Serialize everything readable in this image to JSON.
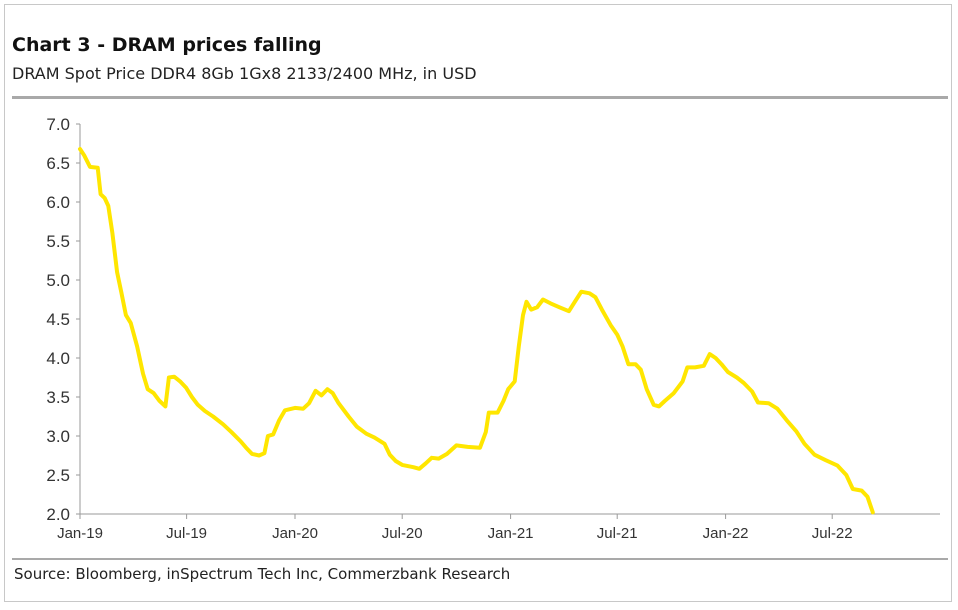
{
  "title": "Chart 3 - DRAM prices falling",
  "subtitle": "DRAM Spot Price DDR4 8Gb 1Gx8 2133/2400 MHz, in USD",
  "source": "Source: Bloomberg, inSpectrum Tech Inc, Commerzbank Research",
  "chart_data": {
    "type": "line",
    "title": "Chart 3 - DRAM prices falling",
    "subtitle": "DRAM Spot Price DDR4 8Gb 1Gx8 2133/2400 MHz, in USD",
    "xlabel": "",
    "ylabel": "",
    "ylim": [
      2.0,
      7.0
    ],
    "xlim": [
      "2019-01-01",
      "2022-12-31"
    ],
    "grid": false,
    "legend": "none",
    "line_color": "#ffe600",
    "y_ticks": [
      "2.0",
      "2.5",
      "3.0",
      "3.5",
      "4.0",
      "4.5",
      "5.0",
      "5.5",
      "6.0",
      "6.5",
      "7.0"
    ],
    "x_ticks": [
      {
        "label": "Jan-19",
        "date": "2019-01-01"
      },
      {
        "label": "Jul-19",
        "date": "2019-07-01"
      },
      {
        "label": "Jan-20",
        "date": "2020-01-01"
      },
      {
        "label": "Jul-20",
        "date": "2020-07-01"
      },
      {
        "label": "Jan-21",
        "date": "2021-01-01"
      },
      {
        "label": "Jul-21",
        "date": "2021-07-01"
      },
      {
        "label": "Jan-22",
        "date": "2022-01-01"
      },
      {
        "label": "Jul-22",
        "date": "2022-07-01"
      }
    ],
    "series": [
      {
        "points": [
          [
            "2019-01-01",
            6.68
          ],
          [
            "2019-01-08",
            6.6
          ],
          [
            "2019-01-18",
            6.45
          ],
          [
            "2019-01-31",
            6.44
          ],
          [
            "2019-02-05",
            6.1
          ],
          [
            "2019-02-12",
            6.05
          ],
          [
            "2019-02-18",
            5.95
          ],
          [
            "2019-02-25",
            5.6
          ],
          [
            "2019-03-05",
            5.1
          ],
          [
            "2019-03-12",
            4.85
          ],
          [
            "2019-03-20",
            4.55
          ],
          [
            "2019-03-28",
            4.45
          ],
          [
            "2019-04-08",
            4.15
          ],
          [
            "2019-04-18",
            3.8
          ],
          [
            "2019-04-26",
            3.6
          ],
          [
            "2019-05-06",
            3.55
          ],
          [
            "2019-05-16",
            3.45
          ],
          [
            "2019-05-26",
            3.38
          ],
          [
            "2019-06-01",
            3.75
          ],
          [
            "2019-06-10",
            3.76
          ],
          [
            "2019-06-20",
            3.7
          ],
          [
            "2019-06-30",
            3.62
          ],
          [
            "2019-07-10",
            3.5
          ],
          [
            "2019-07-20",
            3.4
          ],
          [
            "2019-08-01",
            3.32
          ],
          [
            "2019-08-15",
            3.25
          ],
          [
            "2019-09-01",
            3.15
          ],
          [
            "2019-09-15",
            3.05
          ],
          [
            "2019-10-01",
            2.93
          ],
          [
            "2019-10-10",
            2.85
          ],
          [
            "2019-10-20",
            2.77
          ],
          [
            "2019-11-01",
            2.75
          ],
          [
            "2019-11-10",
            2.78
          ],
          [
            "2019-11-16",
            3.0
          ],
          [
            "2019-11-25",
            3.02
          ],
          [
            "2019-12-05",
            3.2
          ],
          [
            "2019-12-15",
            3.33
          ],
          [
            "2020-01-01",
            3.36
          ],
          [
            "2020-01-15",
            3.35
          ],
          [
            "2020-01-25",
            3.42
          ],
          [
            "2020-02-05",
            3.58
          ],
          [
            "2020-02-15",
            3.52
          ],
          [
            "2020-02-25",
            3.6
          ],
          [
            "2020-03-05",
            3.55
          ],
          [
            "2020-03-15",
            3.42
          ],
          [
            "2020-04-01",
            3.25
          ],
          [
            "2020-04-15",
            3.12
          ],
          [
            "2020-05-01",
            3.03
          ],
          [
            "2020-05-15",
            2.98
          ],
          [
            "2020-06-01",
            2.9
          ],
          [
            "2020-06-10",
            2.76
          ],
          [
            "2020-06-20",
            2.68
          ],
          [
            "2020-07-01",
            2.63
          ],
          [
            "2020-07-20",
            2.6
          ],
          [
            "2020-07-30",
            2.58
          ],
          [
            "2020-08-10",
            2.65
          ],
          [
            "2020-08-20",
            2.72
          ],
          [
            "2020-09-01",
            2.71
          ],
          [
            "2020-09-15",
            2.77
          ],
          [
            "2020-10-01",
            2.88
          ],
          [
            "2020-10-20",
            2.86
          ],
          [
            "2020-11-10",
            2.85
          ],
          [
            "2020-11-20",
            3.05
          ],
          [
            "2020-11-25",
            3.3
          ],
          [
            "2020-12-10",
            3.3
          ],
          [
            "2020-12-20",
            3.45
          ],
          [
            "2020-12-28",
            3.6
          ],
          [
            "2021-01-08",
            3.7
          ],
          [
            "2021-01-15",
            4.15
          ],
          [
            "2021-01-22",
            4.55
          ],
          [
            "2021-01-28",
            4.72
          ],
          [
            "2021-02-05",
            4.62
          ],
          [
            "2021-02-15",
            4.65
          ],
          [
            "2021-02-25",
            4.75
          ],
          [
            "2021-03-10",
            4.7
          ],
          [
            "2021-03-25",
            4.65
          ],
          [
            "2021-04-10",
            4.6
          ],
          [
            "2021-04-20",
            4.72
          ],
          [
            "2021-05-01",
            4.85
          ],
          [
            "2021-05-15",
            4.83
          ],
          [
            "2021-05-25",
            4.78
          ],
          [
            "2021-06-05",
            4.62
          ],
          [
            "2021-06-20",
            4.42
          ],
          [
            "2021-07-01",
            4.3
          ],
          [
            "2021-07-10",
            4.15
          ],
          [
            "2021-07-20",
            3.92
          ],
          [
            "2021-08-01",
            3.92
          ],
          [
            "2021-08-10",
            3.85
          ],
          [
            "2021-08-20",
            3.6
          ],
          [
            "2021-09-01",
            3.4
          ],
          [
            "2021-09-10",
            3.38
          ],
          [
            "2021-09-20",
            3.45
          ],
          [
            "2021-10-05",
            3.55
          ],
          [
            "2021-10-20",
            3.7
          ],
          [
            "2021-10-28",
            3.88
          ],
          [
            "2021-11-10",
            3.88
          ],
          [
            "2021-11-25",
            3.9
          ],
          [
            "2021-12-05",
            4.05
          ],
          [
            "2021-12-15",
            4.0
          ],
          [
            "2021-12-25",
            3.92
          ],
          [
            "2022-01-05",
            3.82
          ],
          [
            "2022-01-20",
            3.75
          ],
          [
            "2022-02-01",
            3.68
          ],
          [
            "2022-02-15",
            3.57
          ],
          [
            "2022-02-25",
            3.43
          ],
          [
            "2022-03-15",
            3.42
          ],
          [
            "2022-03-30",
            3.35
          ],
          [
            "2022-04-15",
            3.2
          ],
          [
            "2022-05-01",
            3.06
          ],
          [
            "2022-05-15",
            2.9
          ],
          [
            "2022-06-01",
            2.76
          ],
          [
            "2022-06-20",
            2.69
          ],
          [
            "2022-07-10",
            2.62
          ],
          [
            "2022-07-25",
            2.5
          ],
          [
            "2022-08-05",
            2.32
          ],
          [
            "2022-08-20",
            2.3
          ],
          [
            "2022-08-30",
            2.22
          ],
          [
            "2022-09-08",
            2.02
          ]
        ]
      }
    ]
  }
}
